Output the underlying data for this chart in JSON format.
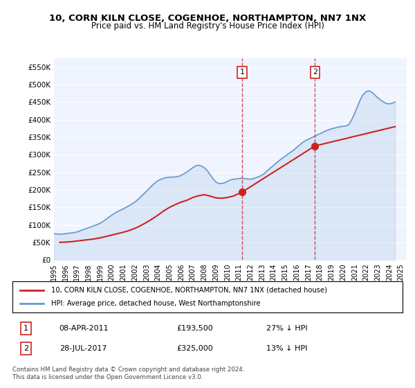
{
  "title": "10, CORN KILN CLOSE, COGENHOE, NORTHAMPTON, NN7 1NX",
  "subtitle": "Price paid vs. HM Land Registry's House Price Index (HPI)",
  "background_color": "#ffffff",
  "plot_bg_color": "#f0f4ff",
  "hpi_color": "#6699cc",
  "price_color": "#cc2222",
  "vline_color": "#cc2222",
  "vline_alpha": 0.6,
  "ylim": [
    0,
    575000
  ],
  "yticks": [
    0,
    50000,
    100000,
    150000,
    200000,
    250000,
    300000,
    350000,
    400000,
    450000,
    500000,
    550000
  ],
  "ytick_labels": [
    "£0",
    "£50K",
    "£100K",
    "£150K",
    "£200K",
    "£250K",
    "£300K",
    "£350K",
    "£400K",
    "£450K",
    "£500K",
    "£550K"
  ],
  "xmin_year": 1995.0,
  "xmax_year": 2025.5,
  "xtick_years": [
    1995,
    1996,
    1997,
    1998,
    1999,
    2000,
    2001,
    2002,
    2003,
    2004,
    2005,
    2006,
    2007,
    2008,
    2009,
    2010,
    2011,
    2012,
    2013,
    2014,
    2015,
    2016,
    2017,
    2018,
    2019,
    2020,
    2021,
    2022,
    2023,
    2024,
    2025
  ],
  "transaction1_year": 2011.27,
  "transaction1_price": 193500,
  "transaction1_label": "1",
  "transaction2_year": 2017.57,
  "transaction2_price": 325000,
  "transaction2_label": "2",
  "legend_property": "10, CORN KILN CLOSE, COGENHOE, NORTHAMPTON, NN7 1NX (detached house)",
  "legend_hpi": "HPI: Average price, detached house, West Northamptonshire",
  "table_row1": [
    "1",
    "08-APR-2011",
    "£193,500",
    "27% ↓ HPI"
  ],
  "table_row2": [
    "2",
    "28-JUL-2017",
    "£325,000",
    "13% ↓ HPI"
  ],
  "footer": "Contains HM Land Registry data © Crown copyright and database right 2024.\nThis data is licensed under the Open Government Licence v3.0.",
  "hpi_data_x": [
    1995.0,
    1995.25,
    1995.5,
    1995.75,
    1996.0,
    1996.25,
    1996.5,
    1996.75,
    1997.0,
    1997.25,
    1997.5,
    1997.75,
    1998.0,
    1998.25,
    1998.5,
    1998.75,
    1999.0,
    1999.25,
    1999.5,
    1999.75,
    2000.0,
    2000.25,
    2000.5,
    2000.75,
    2001.0,
    2001.25,
    2001.5,
    2001.75,
    2002.0,
    2002.25,
    2002.5,
    2002.75,
    2003.0,
    2003.25,
    2003.5,
    2003.75,
    2004.0,
    2004.25,
    2004.5,
    2004.75,
    2005.0,
    2005.25,
    2005.5,
    2005.75,
    2006.0,
    2006.25,
    2006.5,
    2006.75,
    2007.0,
    2007.25,
    2007.5,
    2007.75,
    2008.0,
    2008.25,
    2008.5,
    2008.75,
    2009.0,
    2009.25,
    2009.5,
    2009.75,
    2010.0,
    2010.25,
    2010.5,
    2010.75,
    2011.0,
    2011.25,
    2011.5,
    2011.75,
    2012.0,
    2012.25,
    2012.5,
    2012.75,
    2013.0,
    2013.25,
    2013.5,
    2013.75,
    2014.0,
    2014.25,
    2014.5,
    2014.75,
    2015.0,
    2015.25,
    2015.5,
    2015.75,
    2016.0,
    2016.25,
    2016.5,
    2016.75,
    2017.0,
    2017.25,
    2017.5,
    2017.75,
    2018.0,
    2018.25,
    2018.5,
    2018.75,
    2019.0,
    2019.25,
    2019.5,
    2019.75,
    2020.0,
    2020.25,
    2020.5,
    2020.75,
    2021.0,
    2021.25,
    2021.5,
    2021.75,
    2022.0,
    2022.25,
    2022.5,
    2022.75,
    2023.0,
    2023.25,
    2023.5,
    2023.75,
    2024.0,
    2024.25,
    2024.5
  ],
  "hpi_data_y": [
    75000,
    74000,
    73500,
    74000,
    75000,
    76000,
    77000,
    78000,
    80000,
    83000,
    86000,
    89000,
    92000,
    95000,
    98000,
    101000,
    105000,
    110000,
    116000,
    122000,
    128000,
    133000,
    138000,
    142000,
    146000,
    150000,
    155000,
    160000,
    165000,
    172000,
    180000,
    188000,
    196000,
    204000,
    213000,
    220000,
    226000,
    230000,
    233000,
    235000,
    236000,
    236000,
    237000,
    238000,
    241000,
    246000,
    251000,
    257000,
    263000,
    268000,
    270000,
    268000,
    263000,
    255000,
    243000,
    232000,
    222000,
    218000,
    218000,
    220000,
    224000,
    228000,
    230000,
    231000,
    232000,
    233000,
    232000,
    231000,
    230000,
    232000,
    235000,
    238000,
    242000,
    248000,
    256000,
    263000,
    270000,
    277000,
    284000,
    290000,
    296000,
    302000,
    308000,
    314000,
    321000,
    328000,
    335000,
    340000,
    344000,
    348000,
    352000,
    356000,
    360000,
    364000,
    368000,
    371000,
    374000,
    376000,
    378000,
    380000,
    381000,
    382000,
    386000,
    400000,
    418000,
    438000,
    458000,
    472000,
    480000,
    482000,
    478000,
    470000,
    462000,
    456000,
    450000,
    446000,
    445000,
    447000,
    450000
  ],
  "price_data_x": [
    1995.5,
    1996.0,
    1996.5,
    1997.0,
    1997.5,
    1998.0,
    1998.5,
    1999.0,
    1999.5,
    2000.0,
    2000.5,
    2001.0,
    2001.5,
    2002.0,
    2002.5,
    2003.0,
    2003.5,
    2004.0,
    2004.5,
    2005.0,
    2005.5,
    2006.0,
    2006.5,
    2007.0,
    2007.5,
    2008.0,
    2008.5,
    2009.0,
    2009.5,
    2010.0,
    2010.5,
    2011.27,
    2017.57,
    2024.5
  ],
  "price_data_y": [
    50000,
    51000,
    52000,
    54000,
    56000,
    58000,
    60000,
    63000,
    67000,
    71000,
    75000,
    79000,
    84000,
    90000,
    98000,
    107000,
    117000,
    128000,
    140000,
    150000,
    158000,
    165000,
    170000,
    178000,
    183000,
    186000,
    182000,
    177000,
    176000,
    178000,
    182000,
    193500,
    325000,
    380000
  ]
}
